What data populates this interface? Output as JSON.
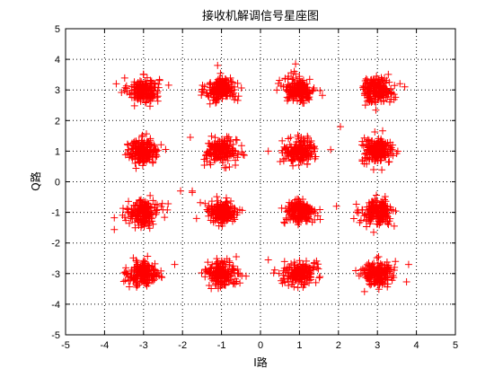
{
  "chart_data": {
    "type": "scatter",
    "title": "接收机解调信号星座图",
    "xlabel": "I路",
    "ylabel": "Q路",
    "xlim": [
      -5,
      5
    ],
    "ylim": [
      -5,
      5
    ],
    "xticks": [
      -5,
      -4,
      -3,
      -2,
      -1,
      0,
      1,
      2,
      3,
      4,
      5
    ],
    "yticks": [
      -5,
      -4,
      -3,
      -2,
      -1,
      0,
      1,
      2,
      3,
      4,
      5
    ],
    "xtick_labels": [
      "-5",
      "-4",
      "-3",
      "-2",
      "-1",
      "0",
      "1",
      "2",
      "3",
      "4",
      "5"
    ],
    "ytick_labels": [
      "-5",
      "-4",
      "-3",
      "-2",
      "-1",
      "0",
      "1",
      "2",
      "3",
      "4",
      "5"
    ],
    "grid": true,
    "grid_style": "dotted",
    "marker": "+",
    "marker_color": "#ff0000",
    "constellation": "16-QAM",
    "cluster_centers": [
      [
        -3,
        3
      ],
      [
        -1,
        3
      ],
      [
        1,
        3
      ],
      [
        3,
        3
      ],
      [
        -3,
        1
      ],
      [
        -1,
        1
      ],
      [
        1,
        1
      ],
      [
        3,
        1
      ],
      [
        -3,
        -1
      ],
      [
        -1,
        -1
      ],
      [
        1,
        -1
      ],
      [
        3,
        -1
      ],
      [
        -3,
        -3
      ],
      [
        -1,
        -3
      ],
      [
        1,
        -3
      ],
      [
        3,
        -3
      ]
    ],
    "cluster_spread": 0.2,
    "points_per_cluster": 180,
    "outliers": [
      [
        -1.1,
        3.8
      ],
      [
        -3.7,
        3.2
      ],
      [
        -3.4,
        1.2
      ],
      [
        2.05,
        1.8
      ],
      [
        -1.75,
        -0.3
      ],
      [
        -1.75,
        -0.35
      ],
      [
        0.2,
        1.0
      ],
      [
        3.8,
        -2.7
      ],
      [
        1.95,
        -0.8
      ],
      [
        -2.05,
        -0.3
      ],
      [
        -2.2,
        -2.7
      ],
      [
        0.2,
        -2.55
      ],
      [
        0.9,
        3.85
      ],
      [
        3.7,
        3.1
      ],
      [
        -1.8,
        1.45
      ],
      [
        1.8,
        1.05
      ]
    ]
  }
}
